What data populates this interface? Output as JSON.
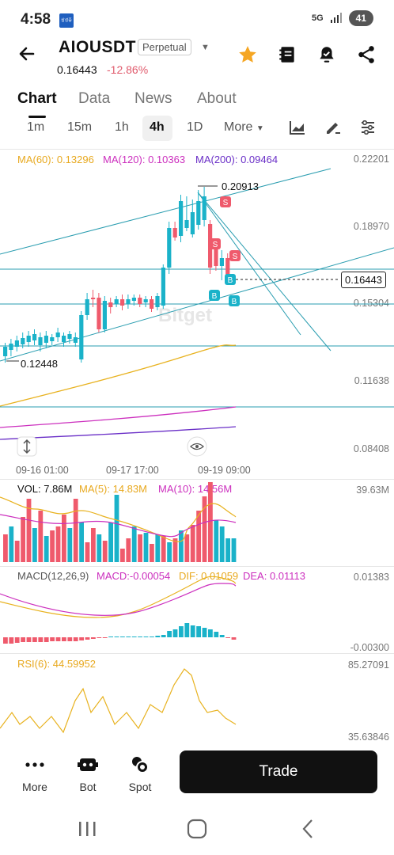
{
  "status": {
    "time": "4:58",
    "badge": "삼성증권",
    "network": "5G",
    "battery": "41"
  },
  "header": {
    "pair": "AIOUSDT",
    "contract_type": "Perpetual",
    "last_price": "0.16443",
    "change": "-12.86%"
  },
  "tabs": [
    "Chart",
    "Data",
    "News",
    "About"
  ],
  "intervals": [
    "1m",
    "15m",
    "1h",
    "4h",
    "1D",
    "More"
  ],
  "active_interval": "4h",
  "ma_legend": {
    "ma60": "MA(60): 0.13296",
    "ma120": "MA(120): 0.10363",
    "ma200": "MA(200): 0.09464"
  },
  "price_axis": [
    "0.22201",
    "0.18970",
    "0.15304",
    "0.11638",
    "0.08408"
  ],
  "current_price_tag": "0.16443",
  "high_label": "0.20913",
  "low_label": "0.12448",
  "watermark": "Bitget",
  "time_axis": [
    "09-16 01:00",
    "09-17 17:00",
    "09-19 09:00"
  ],
  "signals": {
    "sell": "S",
    "buy": "B"
  },
  "volume_legend": {
    "vol": "VOL: 7.86M",
    "ma5": "MA(5): 14.83M",
    "ma10": "MA(10): 14.56M",
    "max": "39.63M"
  },
  "macd_legend": {
    "label": "MACD(12,26,9)",
    "macd": "MACD:-0.00054",
    "dif": "DIF: 0.01059",
    "dea": "DEA: 0.01113",
    "max": "0.01383",
    "min": "-0.00300"
  },
  "rsi_legend": {
    "label": "RSI(6): 44.59952",
    "max": "85.27091",
    "min": "35.63846"
  },
  "bottom_bar": {
    "more": "More",
    "bot": "Bot",
    "spot": "Spot",
    "trade": "Trade"
  },
  "colors": {
    "up": "#1ab2c9",
    "down": "#ef5a6c",
    "ma60": "#e8b21f",
    "ma120": "#cc2fbe",
    "ma200": "#6a2fc7",
    "trendline": "#2a9db0"
  }
}
